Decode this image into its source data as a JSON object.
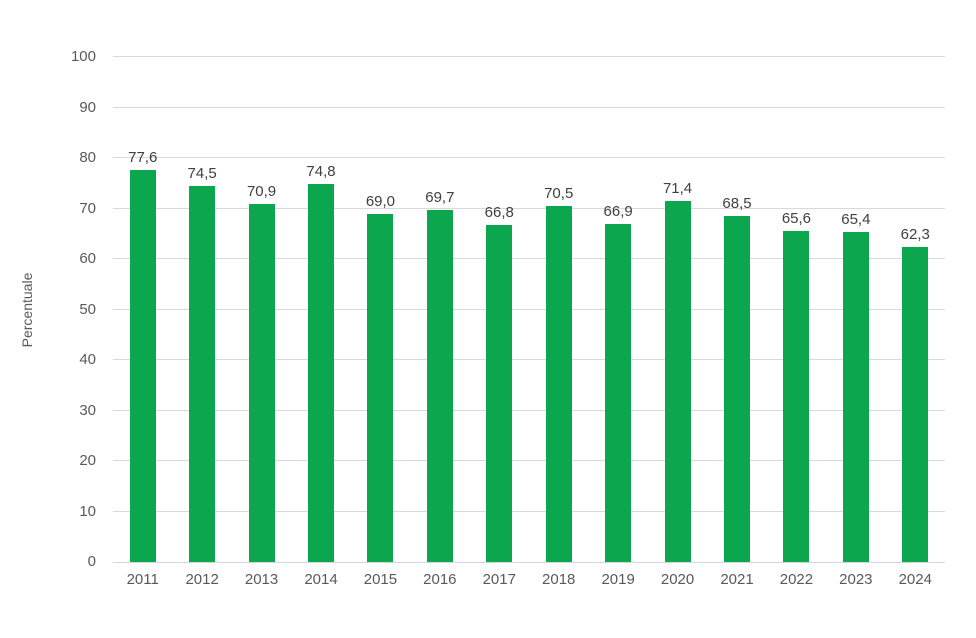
{
  "chart_data": {
    "type": "bar",
    "title": "",
    "ylabel": "Percentuale",
    "xlabel": "",
    "ylim": [
      0,
      100
    ],
    "ytick_step": 10,
    "yticks": [
      "0",
      "10",
      "20",
      "30",
      "40",
      "50",
      "60",
      "70",
      "80",
      "90",
      "100"
    ],
    "categories": [
      "2011",
      "2012",
      "2013",
      "2014",
      "2015",
      "2016",
      "2017",
      "2018",
      "2019",
      "2020",
      "2021",
      "2022",
      "2023",
      "2024"
    ],
    "values": [
      77.6,
      74.5,
      70.9,
      74.8,
      69.0,
      69.7,
      66.8,
      70.5,
      66.9,
      71.4,
      68.5,
      65.6,
      65.4,
      62.3
    ],
    "value_labels": [
      "77,6",
      "74,5",
      "70,9",
      "74,8",
      "69,0",
      "69,7",
      "66,8",
      "70,5",
      "66,9",
      "71,4",
      "68,5",
      "65,6",
      "65,4",
      "62,3"
    ],
    "grid": true,
    "legend": "none",
    "colors": {
      "bar": "#0ca64f",
      "gridline": "#d9d9d9",
      "axis_line": "#d6d6d6",
      "axis_text": "#595959",
      "data_label_text": "#3f3f3f"
    }
  }
}
